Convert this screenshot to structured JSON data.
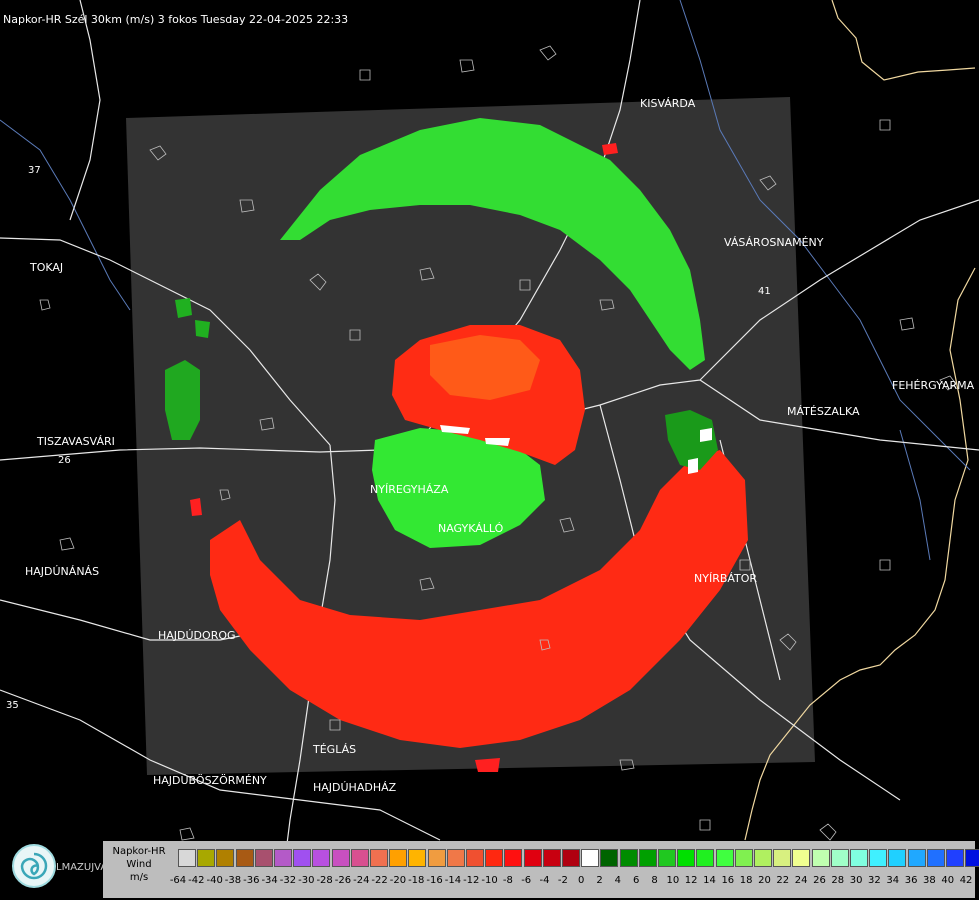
{
  "header": {
    "title": "Napkor-HR Szél 30km (m/s) 3 fokos Tuesday 22-04-2025 22:33"
  },
  "places": [
    {
      "id": "kisvarda",
      "label": "KISVÁRDA"
    },
    {
      "id": "vasarosnameny",
      "label": "VÁSÁROSNAMÉNY"
    },
    {
      "id": "tokaj",
      "label": "TOKAJ"
    },
    {
      "id": "fehergyarmat",
      "label": "FEHÉRGYARMA"
    },
    {
      "id": "mateszalka",
      "label": "MÁTÉSZALKA"
    },
    {
      "id": "tiszavasvari",
      "label": "TISZAVASVÁRI"
    },
    {
      "id": "nyiregyhaza",
      "label": "NYÍREGYHÁZA"
    },
    {
      "id": "nagykallo",
      "label": "NAGYKÁLLÓ"
    },
    {
      "id": "hajdunanas",
      "label": "HAJDÚNÁNÁS"
    },
    {
      "id": "nyirbator",
      "label": "NYÍRBÁTOR"
    },
    {
      "id": "hajdudorog",
      "label": "HAJDÚDOROG"
    },
    {
      "id": "teglas",
      "label": "TÉGLÁS"
    },
    {
      "id": "hajduboszormeny",
      "label": "HAJDÚBÖSZÖRMÉNY"
    },
    {
      "id": "hajduhadhaz",
      "label": "HAJDÚHADHÁZ"
    },
    {
      "id": "route26",
      "label": "26"
    },
    {
      "id": "route35",
      "label": "35"
    },
    {
      "id": "route41",
      "label": "41"
    },
    {
      "id": "route37",
      "label": "37"
    }
  ],
  "legend": {
    "line1": "Napkor-HR",
    "line2": "Wind",
    "line3": "m/s",
    "logo_text": "LMAZUJVAR",
    "ticks": [
      "-64",
      "-42",
      "-40",
      "-38",
      "-36",
      "-34",
      "-32",
      "-30",
      "-28",
      "-26",
      "-24",
      "-22",
      "-20",
      "-18",
      "-16",
      "-14",
      "-12",
      "-10",
      "-8",
      "-6",
      "-4",
      "-2",
      "0",
      "2",
      "4",
      "6",
      "8",
      "10",
      "12",
      "14",
      "16",
      "18",
      "20",
      "22",
      "24",
      "26",
      "28",
      "30",
      "32",
      "34",
      "36",
      "38",
      "40",
      "42"
    ],
    "colors": [
      "#d8d8d8",
      "#a8a800",
      "#b08000",
      "#a85a14",
      "#a8506e",
      "#b45ac8",
      "#a050f0",
      "#b850e0",
      "#c850c0",
      "#d85090",
      "#f07050",
      "#ffa000",
      "#ffb400",
      "#f09c40",
      "#f07848",
      "#f05030",
      "#ff2810",
      "#ff1010",
      "#e00010",
      "#c80010",
      "#b00010",
      "#ffffff",
      "#006400",
      "#008c00",
      "#00a000",
      "#20c820",
      "#00e000",
      "#20f020",
      "#40ff40",
      "#80f050",
      "#b0f060",
      "#d8f080",
      "#f0ff90",
      "#c0ffb0",
      "#a0ffc8",
      "#80ffe0",
      "#40f0ff",
      "#20d0ff",
      "#20a8ff",
      "#2070ff",
      "#2040ff",
      "#0010e0"
    ]
  }
}
